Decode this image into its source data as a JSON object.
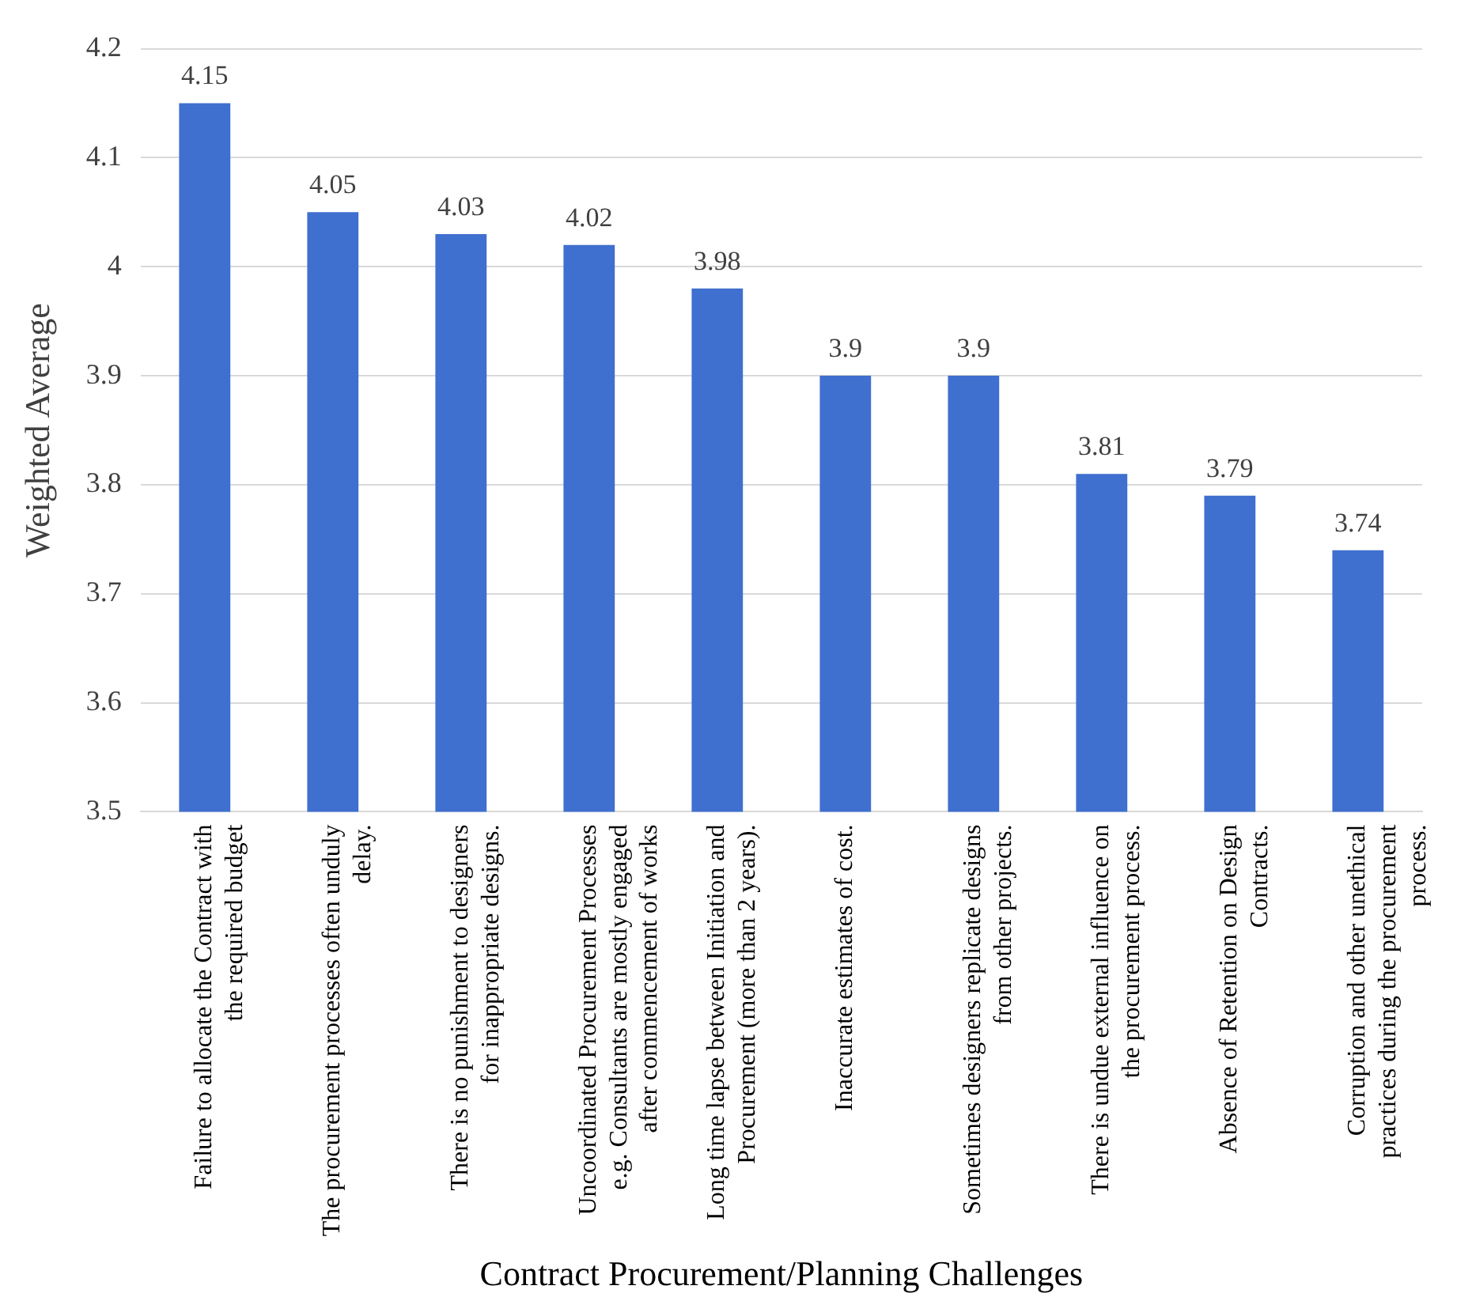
{
  "chart_data": {
    "type": "bar",
    "xlabel": "Contract Procurement/Planning Challenges",
    "ylabel": "Weighted Average",
    "categories": [
      "Failure to allocate the Contract with the required budget",
      "The procurement processes often unduly delay.",
      "There is no punishment to designers for inappropriate designs.",
      "Uncoordinated Procurement Processes e.g. Consultants are mostly engaged after commencement of works",
      "Long time lapse between Initiation and Procurement (more than 2 years).",
      "Inaccurate estimates of cost.",
      "Sometimes designers replicate designs from other projects.",
      "There is undue external influence on the procurement process.",
      "Absence of Retention on Design Contracts.",
      "Corruption and other unethical practices during the procurement process."
    ],
    "values": [
      4.15,
      4.05,
      4.03,
      4.02,
      3.98,
      3.9,
      3.9,
      3.81,
      3.79,
      3.74
    ],
    "color": "#3f6fcf",
    "ylim": [
      3.5,
      4.2
    ],
    "yticks": [
      3.5,
      3.6,
      3.7,
      3.8,
      3.9,
      4,
      4.1,
      4.2
    ],
    "grid": "y",
    "data_labels": true
  }
}
